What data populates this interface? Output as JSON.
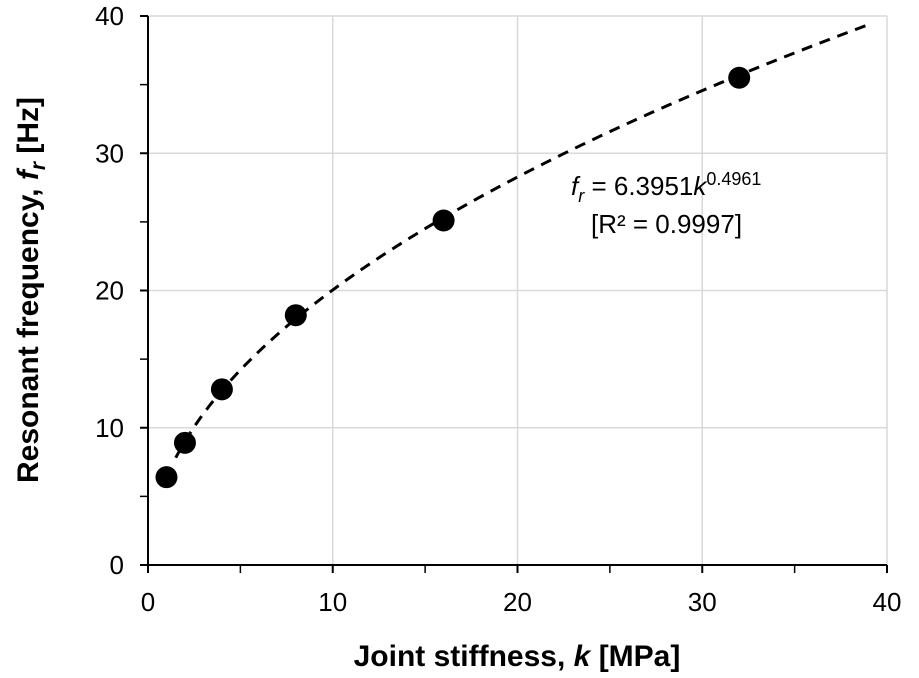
{
  "chart_data": {
    "type": "scatter",
    "xlabel": "Joint stiffness, k [MPa]",
    "xlabel_parts": {
      "prefix": "Joint stiffness, ",
      "var": "k",
      "suffix": " [MPa]"
    },
    "ylabel": "Resonant frequency, fr [Hz]",
    "ylabel_parts": {
      "prefix": "Resonant frequency, ",
      "var": "f",
      "sub": "r",
      "suffix": " [Hz]"
    },
    "xlim": [
      0,
      40
    ],
    "ylim": [
      0,
      40
    ],
    "x_ticks": [
      0,
      10,
      20,
      30,
      40
    ],
    "x_minor_ticks": [
      5,
      15,
      25,
      35
    ],
    "y_ticks": [
      0,
      10,
      20,
      30,
      40
    ],
    "y_minor_ticks": [
      5,
      15,
      25,
      35
    ],
    "grid": true,
    "series": [
      {
        "marker": "circle",
        "color": "#000000",
        "x": [
          1,
          2,
          4,
          8,
          16,
          32
        ],
        "y": [
          6.4,
          8.9,
          12.8,
          18.2,
          25.1,
          35.5
        ]
      }
    ],
    "fit": {
      "a": 6.3951,
      "b": 0.4961,
      "x_range": [
        1.5,
        39
      ],
      "style": "dashed",
      "color": "#000000"
    },
    "annotation": {
      "eq_var": "f",
      "eq_sub": "r",
      "eq_mid": " = 6.3951",
      "eq_k": "k",
      "eq_exp": "0.4961",
      "r2": "[R² = 0.9997]"
    }
  }
}
